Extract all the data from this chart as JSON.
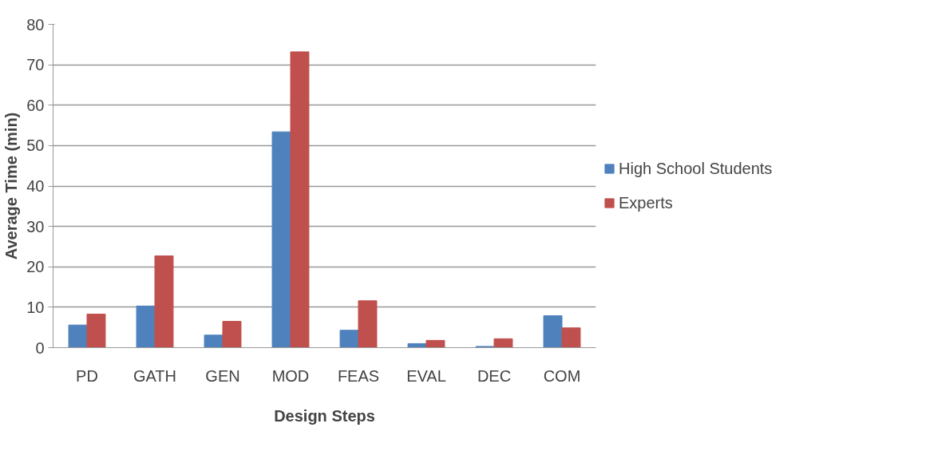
{
  "chart_data": {
    "type": "bar",
    "xlabel": "Design Steps",
    "ylabel": "Average Time (min)",
    "categories": [
      "PD",
      "GATH",
      "GEN",
      "MOD",
      "FEAS",
      "EVAL",
      "DEC",
      "COM"
    ],
    "series": [
      {
        "name": "High School Students",
        "color": "#4f81bd",
        "values": [
          5.6,
          10.3,
          3.1,
          53.4,
          4.3,
          1.0,
          0.3,
          7.9
        ]
      },
      {
        "name": "Experts",
        "color": "#c0504d",
        "values": [
          8.3,
          22.7,
          6.5,
          73.2,
          11.6,
          1.8,
          2.2,
          4.9
        ]
      }
    ],
    "ylim": [
      0,
      80
    ],
    "yticks": [
      0,
      10,
      20,
      30,
      40,
      50,
      60,
      70,
      80
    ],
    "grid": "y",
    "legend": "right"
  }
}
